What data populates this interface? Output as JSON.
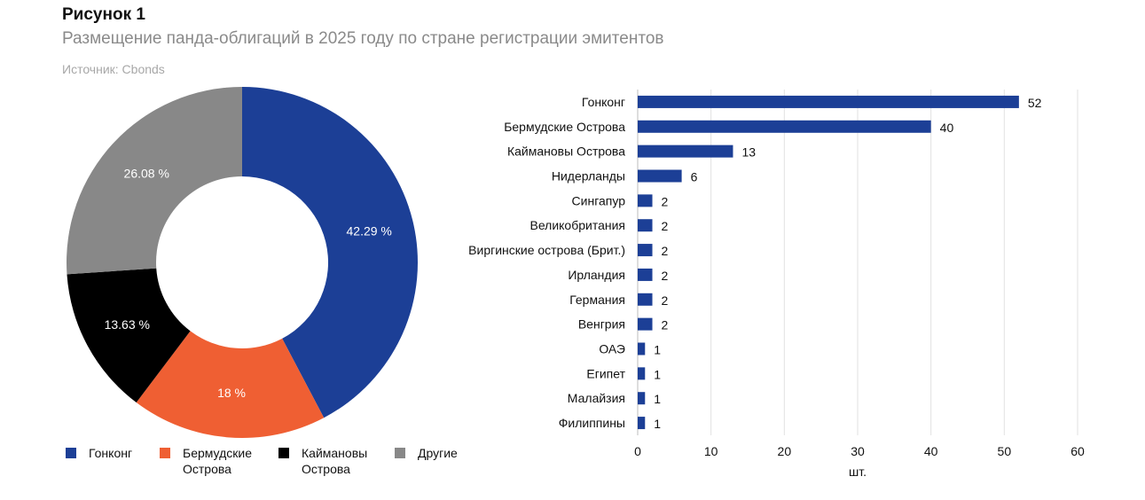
{
  "figure": {
    "label": "Рисунок 1",
    "title": "Размещение панда-облигаций в 2025 году по стране регистрации эмитентов",
    "source": "Источник: Cbonds"
  },
  "chart_data": [
    {
      "type": "pie",
      "style": "donut",
      "legend_position": "bottom",
      "slices": [
        {
          "name": "Гонконг",
          "value": 42.29,
          "label": "42.29 %",
          "color": "#1c3f96"
        },
        {
          "name": "Бермудские Острова",
          "value": 18,
          "label": "18 %",
          "color": "#ef5f33"
        },
        {
          "name": "Каймановы Острова",
          "value": 13.63,
          "label": "13.63 %",
          "color": "#000000"
        },
        {
          "name": "Другие",
          "value": 26.08,
          "label": "26.08 %",
          "color": "#888888"
        }
      ]
    },
    {
      "type": "bar",
      "orientation": "horizontal",
      "categories": [
        "Гонконг",
        "Бермудские Острова",
        "Каймановы Острова",
        "Нидерланды",
        "Сингапур",
        "Великобритания",
        "Виргинские острова (Брит.)",
        "Ирландия",
        "Германия",
        "Венгрия",
        "ОАЭ",
        "Египет",
        "Малайзия",
        "Филиппины"
      ],
      "values": [
        52,
        40,
        13,
        6,
        2,
        2,
        2,
        2,
        2,
        2,
        1,
        1,
        1,
        1
      ],
      "xlabel": "шт.",
      "xlim": [
        0,
        60
      ],
      "xticks": [
        0,
        10,
        20,
        30,
        40,
        50,
        60
      ],
      "grid": true,
      "color": "#1c3f96"
    }
  ]
}
